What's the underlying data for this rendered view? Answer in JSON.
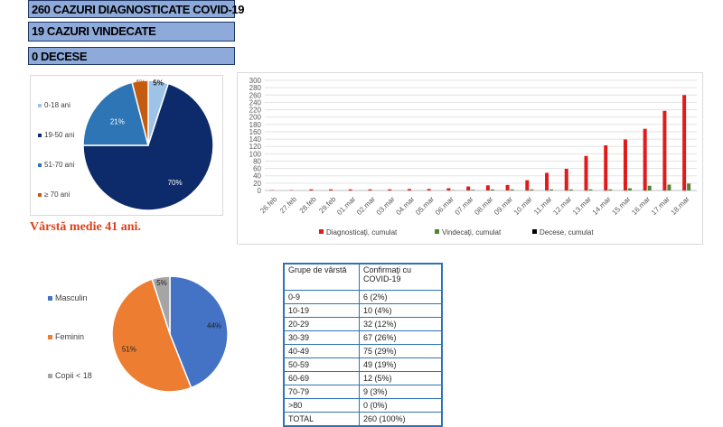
{
  "banners": {
    "diagnosed": "260 CAZURI DIAGNOSTICATE COVID-19",
    "recovered": "19 CAZURI VINDECATE",
    "deaths": "0 DECESE"
  },
  "average_age": "Vârstă medie 41 ani.",
  "colors": {
    "banner": "#8eaadb",
    "red": "#e01b1b",
    "green": "#548235",
    "black": "#000000"
  },
  "chart_data": [
    {
      "type": "pie",
      "title": "",
      "labels": [
        "0-18 ani",
        "19-50 ani",
        "51-70 ani",
        "≥ 70 ani"
      ],
      "values": [
        5,
        70,
        21,
        4
      ],
      "value_labels": [
        "5%",
        "70%",
        "21%",
        "4%"
      ],
      "colors": [
        "#9dc3e6",
        "#0d2a6b",
        "#2e75b6",
        "#c55a11"
      ],
      "legend": "left"
    },
    {
      "type": "bar",
      "title": "",
      "categories": [
        "26.feb",
        "27.feb",
        "28.feb",
        "29.feb",
        "01.mar",
        "02.mar",
        "03.mar",
        "04.mar",
        "05.mar",
        "06.mar",
        "07.mar",
        "08.mar",
        "09.mar",
        "10.mar",
        "11.mar",
        "12.mar",
        "13.mar",
        "14.mar",
        "15.mar",
        "16.mar",
        "17.mar",
        "18.mar"
      ],
      "series": [
        {
          "name": "Diagnosticaţi, cumulat",
          "color": "#e01b1b",
          "values": [
            1,
            1,
            3,
            3,
            3,
            3,
            3,
            4,
            4,
            6,
            11,
            14,
            15,
            28,
            48,
            59,
            94,
            123,
            139,
            168,
            217,
            260
          ]
        },
        {
          "name": "Vindecaţi, cumulat",
          "color": "#548235",
          "values": [
            0,
            0,
            0,
            0,
            0,
            0,
            0,
            0,
            0,
            1,
            2,
            3,
            3,
            3,
            3,
            3,
            3,
            3,
            6,
            13,
            16,
            19
          ]
        },
        {
          "name": "Decese, cumulat",
          "color": "#000000",
          "values": [
            0,
            0,
            0,
            0,
            0,
            0,
            0,
            0,
            0,
            0,
            0,
            0,
            0,
            0,
            0,
            0,
            0,
            0,
            0,
            0,
            0,
            0
          ]
        }
      ],
      "ylim": [
        0,
        300
      ],
      "yticks": [
        0,
        20,
        40,
        60,
        80,
        100,
        120,
        140,
        160,
        180,
        200,
        220,
        240,
        260,
        280,
        300
      ],
      "grid": true,
      "legend": "bottom"
    },
    {
      "type": "pie",
      "title": "",
      "labels": [
        "Masculin",
        "Feminin",
        "Copii < 18"
      ],
      "values": [
        44,
        51,
        5
      ],
      "value_labels": [
        "44%",
        "51%",
        "5%"
      ],
      "colors": [
        "#4472c4",
        "#ed7d31",
        "#a5a5a5"
      ],
      "legend": "left"
    },
    {
      "type": "table",
      "columns": [
        "Grupe de vârstă",
        "Confirmaţi cu COVID-19"
      ],
      "rows": [
        [
          "0-9",
          "6 (2%)"
        ],
        [
          "10-19",
          "10 (4%)"
        ],
        [
          "20-29",
          "32 (12%)"
        ],
        [
          "30-39",
          "67 (26%)"
        ],
        [
          "40-49",
          "75 (29%)"
        ],
        [
          "50-59",
          "49 (19%)"
        ],
        [
          "60-69",
          "12 (5%)"
        ],
        [
          "70-79",
          "9 (3%)"
        ],
        [
          ">80",
          "0 (0%)"
        ],
        [
          "TOTAL",
          "260 (100%)"
        ]
      ]
    }
  ]
}
